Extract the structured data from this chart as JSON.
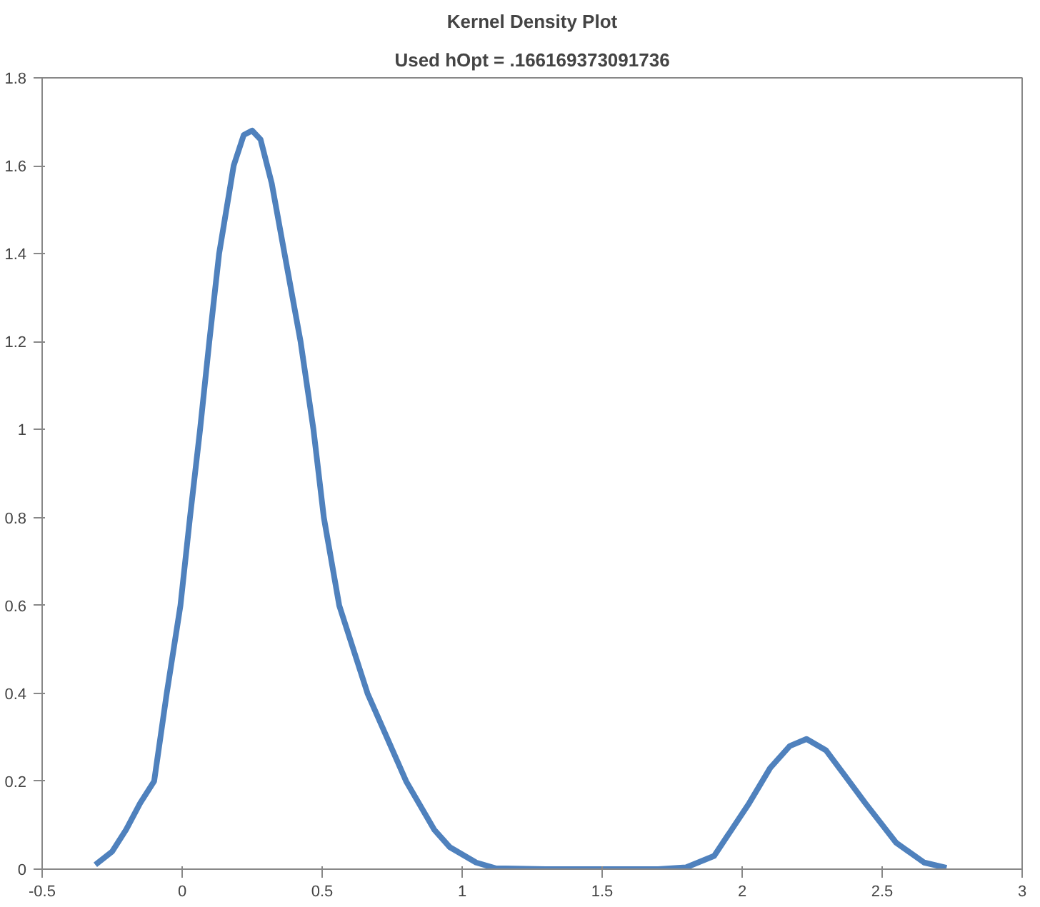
{
  "chart_data": {
    "type": "line",
    "title": "Kernel Density Plot",
    "subtitle": "Used hOpt = .166169373091736",
    "x": [
      -0.31,
      -0.25,
      -0.2,
      -0.15,
      -0.1,
      -0.055,
      -0.006,
      0.028,
      0.064,
      0.097,
      0.132,
      0.184,
      0.22,
      0.25,
      0.28,
      0.32,
      0.36,
      0.423,
      0.469,
      0.506,
      0.561,
      0.662,
      0.8,
      0.9,
      0.956,
      1.05,
      1.12,
      1.3,
      1.5,
      1.7,
      1.8,
      1.9,
      2.025,
      2.1,
      2.17,
      2.23,
      2.3,
      2.37,
      2.44,
      2.55,
      2.65,
      2.73
    ],
    "series": [
      {
        "color": "#4f81bd",
        "values": [
          0.01,
          0.04,
          0.09,
          0.15,
          0.2,
          0.4,
          0.6,
          0.8,
          1.0,
          1.2,
          1.4,
          1.6,
          1.67,
          1.68,
          1.66,
          1.56,
          1.42,
          1.2,
          1.0,
          0.8,
          0.6,
          0.4,
          0.2,
          0.09,
          0.05,
          0.015,
          0.002,
          0,
          0,
          0,
          0.004,
          0.03,
          0.15,
          0.23,
          0.28,
          0.296,
          0.27,
          0.21,
          0.15,
          0.06,
          0.015,
          0.003
        ]
      }
    ],
    "xlim": [
      -0.5,
      3
    ],
    "ylim": [
      0,
      1.8
    ],
    "xticks": [
      -0.5,
      0,
      0.5,
      1,
      1.5,
      2,
      2.5,
      3
    ],
    "yticks": [
      0,
      0.2,
      0.4,
      0.6,
      0.8,
      1,
      1.2,
      1.4,
      1.6,
      1.8
    ],
    "grid": false,
    "marker": "none",
    "line_style": "solid"
  }
}
